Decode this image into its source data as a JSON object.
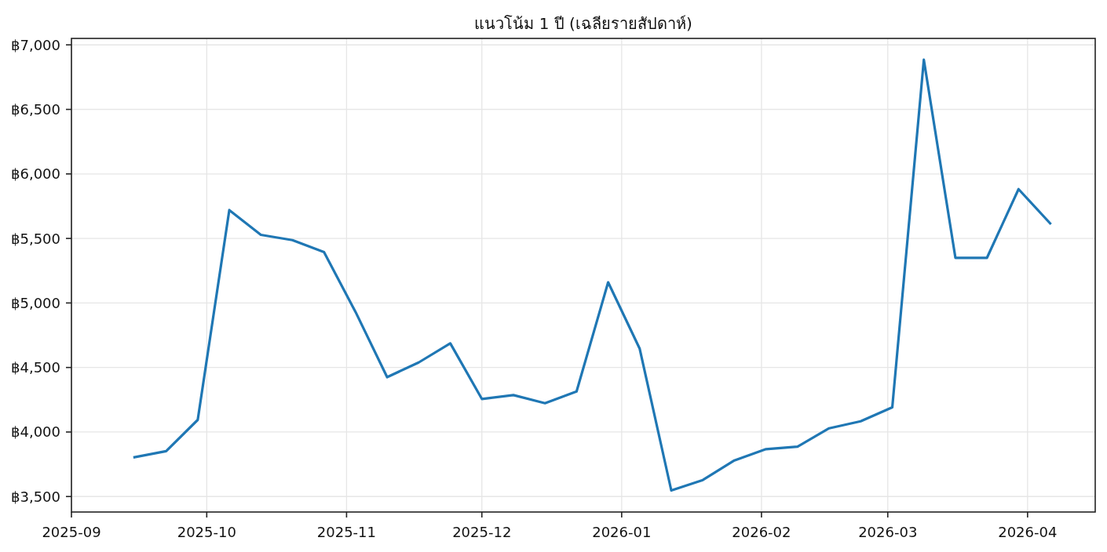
{
  "chart_data": {
    "type": "line",
    "title": "แนวโน้ม 1 ปี (เฉลียรายสัปดาห์)",
    "x": [
      "2025-09-15",
      "2025-09-22",
      "2025-09-29",
      "2025-10-06",
      "2025-10-13",
      "2025-10-20",
      "2025-10-27",
      "2025-11-03",
      "2025-11-10",
      "2025-11-17",
      "2025-11-24",
      "2025-12-01",
      "2025-12-08",
      "2025-12-15",
      "2025-12-22",
      "2025-12-29",
      "2026-01-05",
      "2026-01-12",
      "2026-01-19",
      "2026-01-26",
      "2026-02-02",
      "2026-02-09",
      "2026-02-16",
      "2026-02-23",
      "2026-03-02",
      "2026-03-09",
      "2026-03-16",
      "2026-03-23",
      "2026-03-30",
      "2026-04-06"
    ],
    "series": [
      {
        "color": "#1f77b4",
        "values": [
          3805,
          3852,
          4094,
          5720,
          5528,
          5487,
          5394,
          4930,
          4425,
          4539,
          4687,
          4256,
          4286,
          4223,
          4314,
          5160,
          4645,
          3547,
          3628,
          3780,
          3867,
          3887,
          4029,
          4083,
          4191,
          6885,
          5350,
          5350,
          5882,
          5617
        ]
      }
    ],
    "xlim": [
      "2025-09-01",
      "2026-04-16"
    ],
    "xticks": [
      "2025-09",
      "2025-10",
      "2025-11",
      "2025-12",
      "2026-01",
      "2026-02",
      "2026-03",
      "2026-04"
    ],
    "ylim": [
      3380,
      7050
    ],
    "yticks": [
      {
        "value": 3500,
        "label": "฿3,500"
      },
      {
        "value": 4000,
        "label": "฿4,000"
      },
      {
        "value": 4500,
        "label": "฿4,500"
      },
      {
        "value": 5000,
        "label": "฿5,000"
      },
      {
        "value": 5500,
        "label": "฿5,500"
      },
      {
        "value": 6000,
        "label": "฿6,000"
      },
      {
        "value": 6500,
        "label": "฿6,500"
      },
      {
        "value": 7000,
        "label": "฿7,000"
      }
    ],
    "grid": true
  }
}
